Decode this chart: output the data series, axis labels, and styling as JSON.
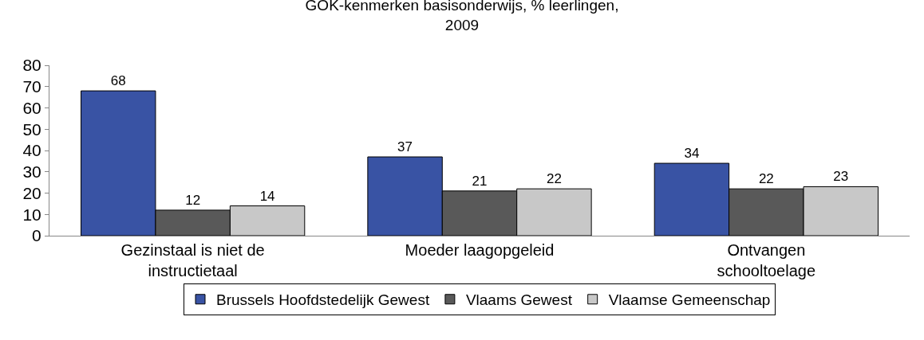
{
  "chart_data": {
    "type": "bar",
    "title": "GOK-kenmerken basisonderwijs, % leerlingen, 2009",
    "categories": [
      "Gezinstaal is niet de instructietaal",
      "Moeder laagopgeleid",
      "Ontvangen schooltoelage"
    ],
    "series": [
      {
        "name": "Brussels Hoofdstedelijk Gewest",
        "color": "#3953a4",
        "values": [
          68,
          37,
          34
        ]
      },
      {
        "name": "Vlaams Gewest",
        "color": "#595959",
        "values": [
          12,
          21,
          22
        ]
      },
      {
        "name": "Vlaamse Gemeenschap",
        "color": "#c8c8c8",
        "values": [
          14,
          22,
          23
        ]
      }
    ],
    "ylim": [
      0,
      80
    ],
    "yticks": [
      0,
      10,
      20,
      30,
      40,
      50,
      60,
      70,
      80
    ],
    "grid": false,
    "legend": "bottom",
    "data_labels": true
  }
}
